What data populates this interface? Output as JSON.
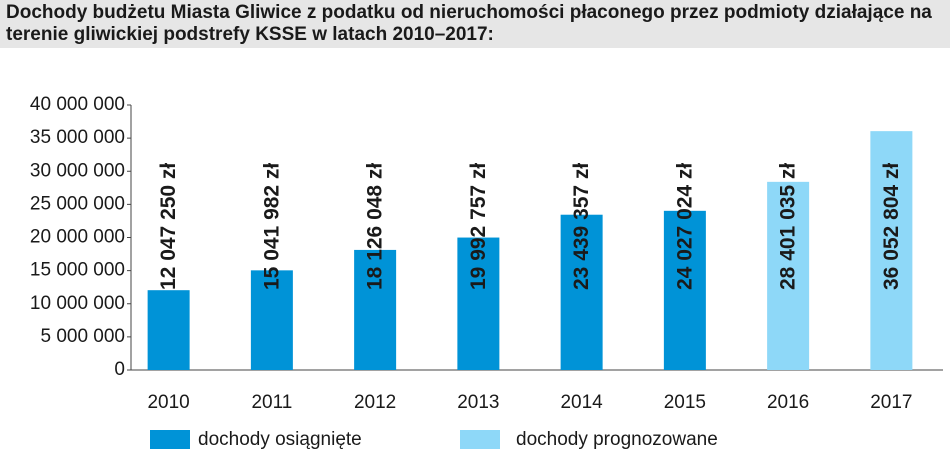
{
  "chart_data": {
    "type": "bar",
    "title": "Dochody budżetu Miasta Gliwice z podatku od nieruchomości płaconego przez podmioty działające na terenie gliwickiej podstrefy KSSE w latach 2010–2017:",
    "categories": [
      "2010",
      "2011",
      "2012",
      "2013",
      "2014",
      "2015",
      "2016",
      "2017"
    ],
    "series": [
      {
        "name": "dochody osiągnięte",
        "color": "#0093d7",
        "values": [
          12047250,
          15041982,
          18126048,
          19992757,
          23439357,
          24027024,
          null,
          null
        ],
        "value_labels": [
          "12 047 250 zł",
          "15 041 982 zł",
          "18 126 048 zł",
          "19 992 757 zł",
          "23 439 357 zł",
          "24 027 024 zł",
          null,
          null
        ]
      },
      {
        "name": "dochody prognozowane",
        "color": "#8ed8f8",
        "values": [
          null,
          null,
          null,
          null,
          null,
          null,
          28401035,
          36052804
        ],
        "value_labels": [
          null,
          null,
          null,
          null,
          null,
          null,
          "28 401 035 zł",
          "36 052 804 zł"
        ]
      }
    ],
    "ylim": [
      0,
      40000000
    ],
    "yticks": [
      0,
      {
        "value": 5000000,
        "label": "5 000 000"
      },
      {
        "value": 10000000,
        "label": "10 000 000"
      },
      {
        "value": 15000000,
        "label": "15 000 000"
      },
      {
        "value": 20000000,
        "label": "20 000 000"
      },
      {
        "value": 25000000,
        "label": "25 000 000"
      },
      {
        "value": 30000000,
        "label": "30 000 000"
      },
      {
        "value": 35000000,
        "label": "35 000 000"
      },
      {
        "value": 40000000,
        "label": "40 000 000"
      }
    ],
    "grid": false
  }
}
